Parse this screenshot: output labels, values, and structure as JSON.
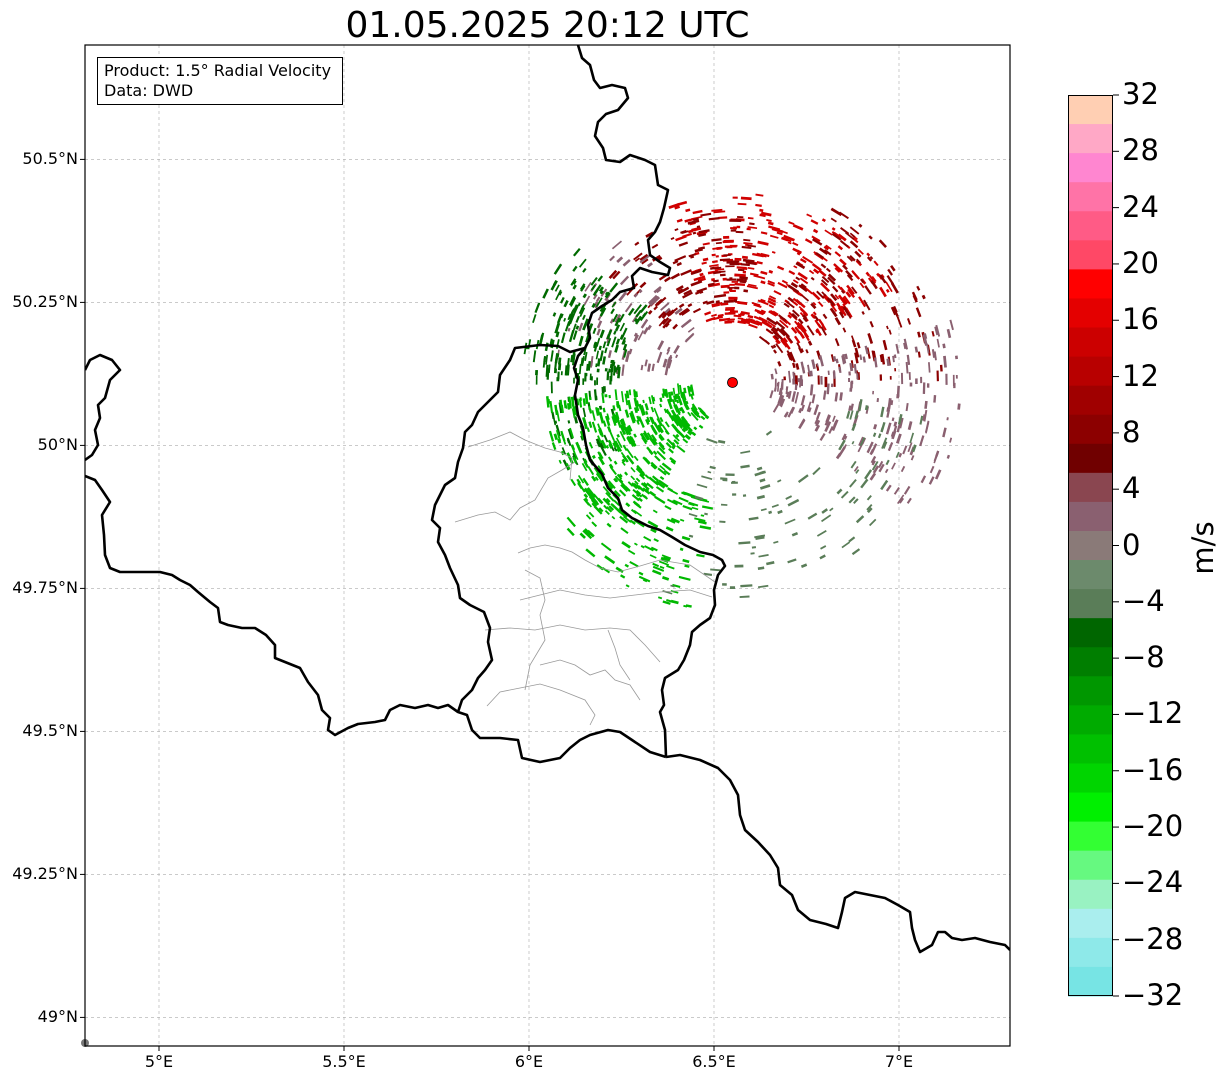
{
  "title": "01.05.2025 20:12 UTC",
  "info": {
    "product": "Product: 1.5° Radial Velocity",
    "data": "Data: DWD"
  },
  "axes": {
    "lat_ticks": [
      "50.5°N",
      "50.25°N",
      "50°N",
      "49.75°N",
      "49.5°N",
      "49.25°N",
      "49°N"
    ],
    "lat_values": [
      50.5,
      50.25,
      50.0,
      49.75,
      49.5,
      49.25,
      49.0
    ],
    "lon_ticks": [
      "5°E",
      "5.5°E",
      "6°E",
      "6.5°E",
      "7°E"
    ],
    "lon_values": [
      5.0,
      5.5,
      6.0,
      6.5,
      7.0
    ],
    "lon_range": [
      4.8,
      7.3
    ],
    "lat_range": [
      48.95,
      50.7
    ],
    "grid": true
  },
  "radar_site": {
    "lon": 6.55,
    "lat": 50.11,
    "color": "#ff0000"
  },
  "colorbar": {
    "label": "m/s",
    "ticks": [
      "32",
      "28",
      "24",
      "20",
      "16",
      "12",
      "8",
      "4",
      "0",
      "−4",
      "−8",
      "−12",
      "−16",
      "−20",
      "−24",
      "−28",
      "−32"
    ],
    "range": [
      -32,
      32
    ],
    "colors_top_to_bottom": [
      "#ffcfb3",
      "#ffa8c6",
      "#ff86d0",
      "#ff73a7",
      "#ff5b86",
      "#ff4866",
      "#ff0000",
      "#e40000",
      "#cc0000",
      "#b80000",
      "#a00000",
      "#8c0000",
      "#700000",
      "#8a4650",
      "#8a6070",
      "#8a7a78",
      "#6c8a6c",
      "#5a7d58",
      "#006600",
      "#007e00",
      "#009700",
      "#00ab00",
      "#00c000",
      "#00d500",
      "#00f000",
      "#33ff33",
      "#66f980",
      "#99f2c2",
      "#aaeeee",
      "#8ee9e9",
      "#77e4e4"
    ]
  },
  "velocity_colors": {
    "strong_inbound": "#00b800",
    "inbound": "#006a00",
    "weak_inbound": "#5a7d58",
    "weak_outbound": "#8a6070",
    "outbound": "#8c0000",
    "strong_outbound": "#d00000"
  }
}
